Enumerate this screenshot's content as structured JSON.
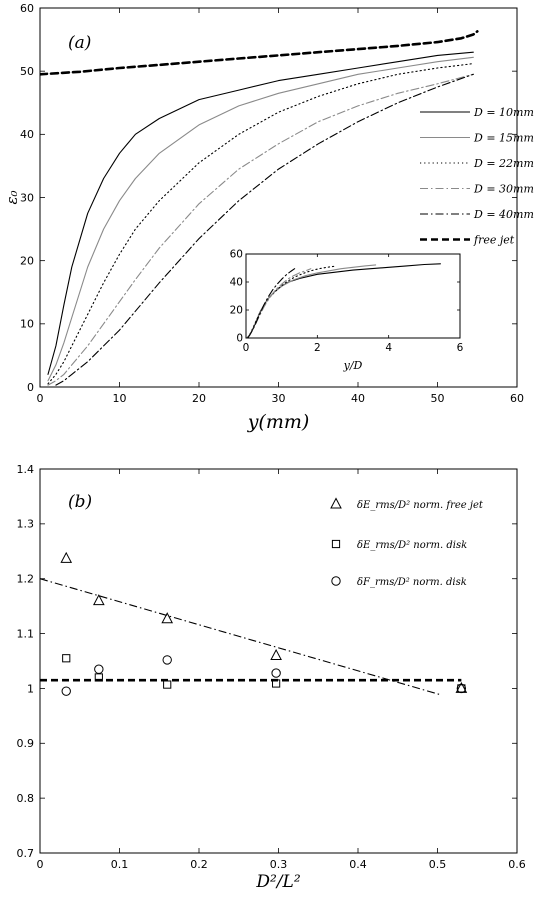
{
  "chart_data": [
    {
      "type": "line",
      "panel_label": "(a)",
      "xlabel": "y(mm)",
      "ylabel": "ε₀",
      "xlim": [
        0,
        60
      ],
      "ylim": [
        0,
        60
      ],
      "xticks": [
        0,
        10,
        20,
        30,
        40,
        50,
        60
      ],
      "yticks": [
        0,
        10,
        20,
        30,
        40,
        50,
        60
      ],
      "grid": false,
      "legend_position": "right",
      "series": [
        {
          "name": "D = 10mm",
          "style": "solid",
          "color": "#000000",
          "x": [
            1,
            2,
            3,
            4,
            6,
            8,
            10,
            12,
            15,
            20,
            25,
            30,
            35,
            40,
            45,
            50,
            54.5
          ],
          "y": [
            2,
            6.5,
            13,
            19,
            27.5,
            33,
            37,
            40,
            42.5,
            45.5,
            47,
            48.5,
            49.5,
            50.5,
            51.5,
            52.5,
            53
          ]
        },
        {
          "name": "D = 15mm",
          "style": "solid",
          "color": "#8a8a8a",
          "x": [
            1,
            2,
            3,
            4,
            6,
            8,
            10,
            12,
            15,
            20,
            25,
            30,
            35,
            40,
            45,
            50,
            54.5
          ],
          "y": [
            1,
            3.5,
            7,
            11,
            19,
            25,
            29.5,
            33,
            37,
            41.5,
            44.5,
            46.5,
            48,
            49.5,
            50.5,
            51.5,
            52.2
          ]
        },
        {
          "name": "D = 22mm",
          "style": "dotted",
          "color": "#000000",
          "x": [
            1,
            2,
            3,
            4,
            6,
            8,
            10,
            12,
            15,
            20,
            25,
            30,
            35,
            40,
            45,
            50,
            54.5
          ],
          "y": [
            0.5,
            2,
            4,
            6.5,
            11.5,
            16.5,
            21,
            25,
            29.5,
            35.5,
            40,
            43.5,
            46,
            48,
            49.5,
            50.5,
            51.2
          ]
        },
        {
          "name": "D = 30mm",
          "style": "dashdot",
          "color": "#8a8a8a",
          "x": [
            1,
            2,
            3,
            4,
            6,
            8,
            10,
            12,
            15,
            20,
            25,
            30,
            35,
            40,
            45,
            50,
            54.5
          ],
          "y": [
            0.3,
            1,
            2,
            3.5,
            6.5,
            10,
            13.5,
            17,
            22,
            29,
            34.5,
            38.5,
            42,
            44.5,
            46.5,
            48,
            49.5
          ]
        },
        {
          "name": "D = 40mm",
          "style": "dashdot",
          "color": "#000000",
          "x": [
            2,
            3,
            4,
            6,
            8,
            10,
            12,
            15,
            20,
            25,
            30,
            35,
            40,
            45,
            50,
            54.5
          ],
          "y": [
            0.3,
            1,
            2,
            4,
            6.5,
            9,
            12,
            16.5,
            23.5,
            29.5,
            34.5,
            38.5,
            42,
            45,
            47.5,
            49.5
          ]
        },
        {
          "name": "free jet",
          "style": "dashed-thick",
          "color": "#000000",
          "x": [
            0,
            5,
            10,
            15,
            20,
            25,
            30,
            35,
            40,
            45,
            50,
            53,
            54.5,
            55
          ],
          "y": [
            49.5,
            49.9,
            50.5,
            51,
            51.5,
            52,
            52.5,
            53,
            53.5,
            54,
            54.6,
            55.2,
            55.8,
            56.3
          ]
        }
      ],
      "inset": {
        "xlabel": "y/D",
        "xlim": [
          0,
          6
        ],
        "ylim": [
          0,
          60
        ],
        "xticks": [
          0,
          2,
          4,
          6
        ],
        "yticks": [
          0,
          20,
          40,
          60
        ],
        "series": [
          {
            "name": "D = 10mm",
            "style": "solid",
            "color": "#000000",
            "x": [
              0.1,
              0.2,
              0.3,
              0.4,
              0.6,
              0.8,
              1,
              1.2,
              1.5,
              2,
              2.5,
              3,
              3.5,
              4,
              4.5,
              5,
              5.45
            ],
            "y": [
              2,
              6.5,
              13,
              19,
              27.5,
              33,
              37,
              40,
              42.5,
              45.5,
              47,
              48.5,
              49.5,
              50.5,
              51.5,
              52.5,
              53
            ]
          },
          {
            "name": "D = 15mm",
            "style": "solid",
            "color": "#8a8a8a",
            "x": [
              0.067,
              0.133,
              0.2,
              0.267,
              0.4,
              0.533,
              0.667,
              0.8,
              1,
              1.333,
              1.667,
              2,
              2.333,
              2.667,
              3,
              3.333,
              3.633
            ],
            "y": [
              1,
              3.5,
              7,
              11,
              19,
              25,
              29.5,
              33,
              37,
              41.5,
              44.5,
              46.5,
              48,
              49.5,
              50.5,
              51.5,
              52.2
            ]
          },
          {
            "name": "D = 22mm",
            "style": "dotted",
            "color": "#000000",
            "x": [
              0.045,
              0.091,
              0.136,
              0.182,
              0.273,
              0.364,
              0.455,
              0.545,
              0.682,
              0.909,
              1.136,
              1.364,
              1.591,
              1.818,
              2.045,
              2.273,
              2.477
            ],
            "y": [
              0.5,
              2,
              4,
              6.5,
              11.5,
              16.5,
              21,
              25,
              29.5,
              35.5,
              40,
              43.5,
              46,
              48,
              49.5,
              50.5,
              51.2
            ]
          },
          {
            "name": "D = 30mm",
            "style": "dashdot",
            "color": "#8a8a8a",
            "x": [
              0.033,
              0.067,
              0.1,
              0.133,
              0.2,
              0.267,
              0.333,
              0.4,
              0.5,
              0.667,
              0.833,
              1,
              1.167,
              1.333,
              1.5,
              1.667,
              1.817
            ],
            "y": [
              0.3,
              1,
              2,
              3.5,
              6.5,
              10,
              13.5,
              17,
              22,
              29,
              34.5,
              38.5,
              42,
              44.5,
              46.5,
              48,
              49.5
            ]
          },
          {
            "name": "D = 40mm",
            "style": "dashdot",
            "color": "#000000",
            "x": [
              0.05,
              0.075,
              0.1,
              0.15,
              0.2,
              0.25,
              0.3,
              0.375,
              0.5,
              0.625,
              0.75,
              0.875,
              1,
              1.125,
              1.25,
              1.363
            ],
            "y": [
              0.3,
              1,
              2,
              4,
              6.5,
              9,
              12,
              16.5,
              23.5,
              29.5,
              34.5,
              38.5,
              42,
              45,
              47.5,
              49.5
            ]
          }
        ]
      }
    },
    {
      "type": "scatter",
      "panel_label": "(b)",
      "xlabel": "D²/L²",
      "ylabel": "",
      "xlim": [
        0,
        0.6
      ],
      "ylim": [
        0.7,
        1.4
      ],
      "xticks": [
        0,
        0.1,
        0.2,
        0.3,
        0.4,
        0.5,
        0.6
      ],
      "yticks": [
        0.7,
        0.8,
        0.9,
        1,
        1.1,
        1.2,
        1.3,
        1.4
      ],
      "grid": false,
      "legend_position": "top-right",
      "series": [
        {
          "name": "δE_rms/D² norm. free jet",
          "marker": "triangle",
          "x": [
            0.033,
            0.074,
            0.16,
            0.297,
            0.53
          ],
          "y": [
            1.237,
            1.16,
            1.127,
            1.06,
            1.0
          ]
        },
        {
          "name": "δE_rms/D² norm. disk",
          "marker": "square",
          "x": [
            0.033,
            0.074,
            0.16,
            0.297,
            0.53
          ],
          "y": [
            1.055,
            1.02,
            1.007,
            1.009,
            1.0
          ]
        },
        {
          "name": "δF_rms/D² norm. disk",
          "marker": "circle",
          "x": [
            0.033,
            0.074,
            0.16,
            0.297,
            0.53
          ],
          "y": [
            0.995,
            1.035,
            1.052,
            1.028,
            1.0
          ]
        }
      ],
      "fit_lines": [
        {
          "style": "dashed-thick",
          "x": [
            0,
            0.53
          ],
          "y": [
            1.015,
            1.015
          ]
        },
        {
          "style": "dashdot",
          "x": [
            0,
            0.505
          ],
          "y": [
            1.2,
            0.988
          ]
        }
      ]
    }
  ]
}
